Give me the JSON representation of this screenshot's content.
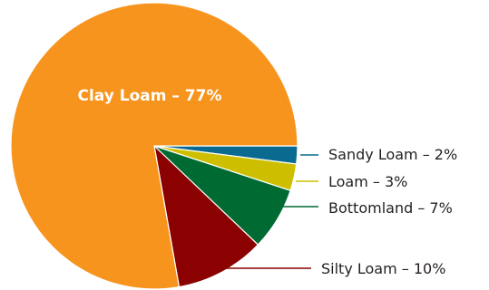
{
  "chart_data": {
    "type": "pie",
    "title": "",
    "slices": [
      {
        "label": "Sandy Loam – 2%",
        "value": 2,
        "color": "#0a6a8f"
      },
      {
        "label": "Loam – 3%",
        "value": 3,
        "color": "#cdbf00"
      },
      {
        "label": "Bottomland – 7%",
        "value": 7,
        "color": "#006a33"
      },
      {
        "label": "Silty Loam – 10%",
        "value": 10,
        "color": "#8b0000"
      },
      {
        "label": "Clay Loam – 77%",
        "value": 77,
        "color": "#f7941e"
      }
    ]
  }
}
